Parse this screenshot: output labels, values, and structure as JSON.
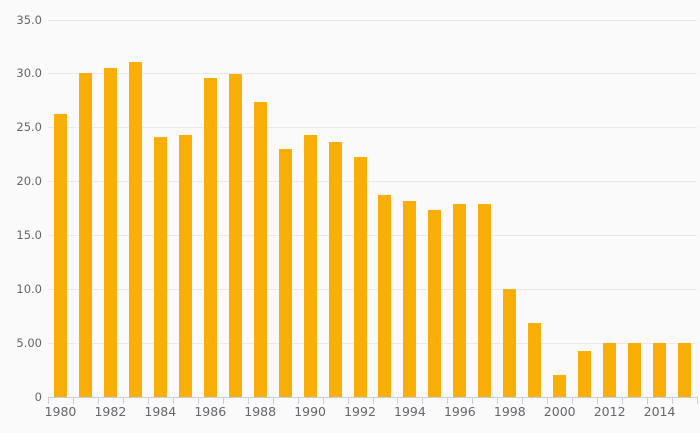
{
  "chart_data": {
    "type": "bar",
    "categories": [
      "1980",
      "1981",
      "1982",
      "1983",
      "1984",
      "1985",
      "1986",
      "1987",
      "1988",
      "1989",
      "1990",
      "1991",
      "1992",
      "1993",
      "1994",
      "1995",
      "1996",
      "1997",
      "1998",
      "1999",
      "2000",
      "2011",
      "2012",
      "2013",
      "2014",
      "2015"
    ],
    "values": [
      26.3,
      30.1,
      30.5,
      31.1,
      24.1,
      24.3,
      29.6,
      30.0,
      27.4,
      23.0,
      24.3,
      23.7,
      22.3,
      18.8,
      18.2,
      17.4,
      17.9,
      17.9,
      10.0,
      6.9,
      2.0,
      4.3,
      5.0,
      5.0,
      5.0,
      5.0
    ],
    "x_tick_labels": [
      "1980",
      "1982",
      "1984",
      "1986",
      "1988",
      "1990",
      "1992",
      "1994",
      "1996",
      "1998",
      "2000",
      "2012",
      "2014"
    ],
    "x_label_every": 2,
    "y_tick_labels": [
      "35.0",
      "30.0",
      "25.0",
      "20.0",
      "15.0",
      "10.0",
      "5.00",
      "0"
    ],
    "y_tick_values": [
      35,
      30,
      25,
      20,
      15,
      10,
      5,
      0
    ],
    "ylim": [
      0,
      35
    ],
    "grid": true,
    "legend_position": "none",
    "xlabel": "",
    "ylabel": "",
    "colors": {
      "bar": "#f9ae08",
      "background": "#fafafa",
      "gridline": "#e9e9ea",
      "axis_line": "#c7cfe8",
      "tick_text": "#66666e"
    }
  }
}
